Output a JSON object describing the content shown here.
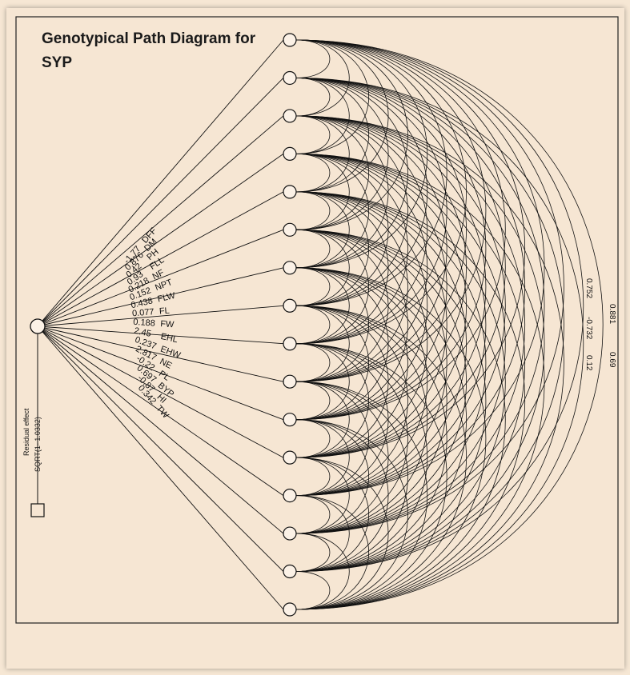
{
  "title_line1": "Genotypical Path Diagram for",
  "title_line2": "SYP",
  "residual": {
    "label": "Residual effect",
    "formula": "SQRT(1-  1.0332)"
  },
  "traits": [
    "DFF",
    "DM",
    "PH",
    "FLL",
    "NF",
    "NPT",
    "FLW",
    "FL",
    "FW",
    "EHL",
    "EHW",
    "NE",
    "PL",
    "BYP",
    "HI",
    "TW"
  ],
  "direct_effects": [
    "-1.77",
    "0.876",
    "0.42",
    "0.93",
    "0.218",
    "0.152",
    "0.438",
    "0.077",
    "0.188",
    "2.45",
    "0.237",
    "2.817",
    "-0.22",
    "0.697",
    "-0.87",
    "0.342"
  ],
  "right_column_labels": [
    "0.881",
    "0.69"
  ],
  "second_column_labels": [
    "0.752",
    "-0.732",
    "0.12"
  ],
  "colors": {
    "background": "#f6e7d4",
    "line": "#111111"
  }
}
